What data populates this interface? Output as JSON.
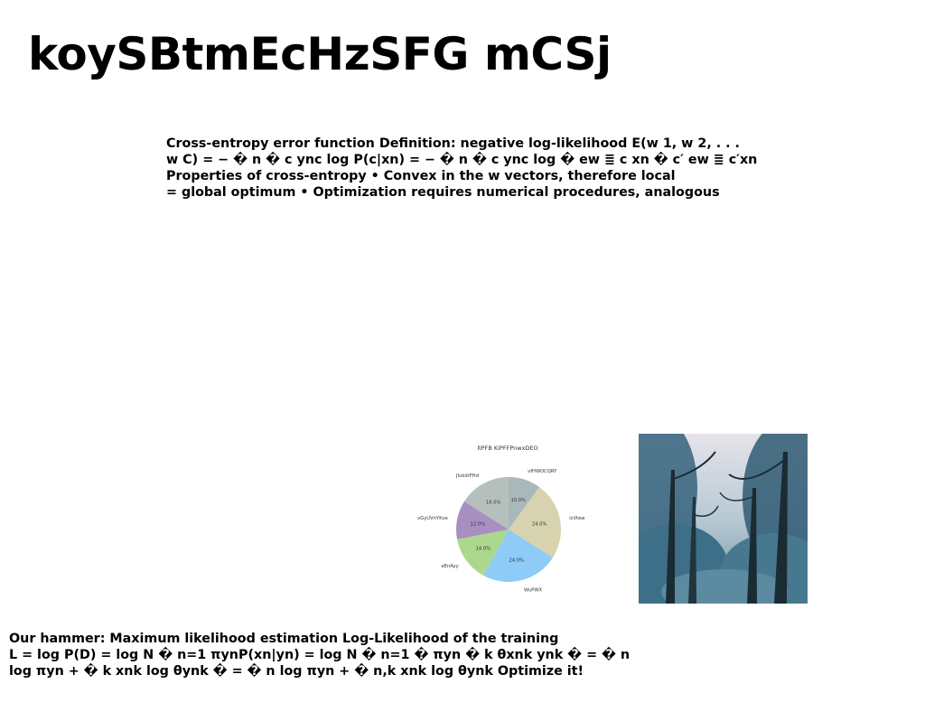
{
  "title": "koySBtmEcHzSFG mCSj",
  "paragraph_top": {
    "lines": [
      "Cross-entropy error function Definition: negative log-likelihood E(w 1, w 2, . . .",
      "w C) = − � n � c ync log P(c|xn) = − � n � c ync log � ew ≣ c xn � c′ ew ≣ c′xn",
      "Properties of cross-entropy • Convex in the w vectors, therefore local",
      "= global optimum • Optimization requires numerical procedures, analogous"
    ]
  },
  "paragraph_bottom": {
    "lines": [
      "Our hammer: Maximum likelihood estimation Log-Likelihood of the training",
      "L = log P(D) = log N � n=1 πynP(xn|yn) = log N � n=1 � πyn � k θxnk ynk � = � n",
      "log πyn + � k xnk log θynk � = � n log πyn + � n,k xnk log θynk Optimize it!"
    ]
  },
  "chart_data": {
    "type": "pie",
    "title": "ltPFB KiPFFPnwxDEO",
    "categories": [
      "vfHWOCQRY",
      "icVtew",
      "WuPWX",
      "eEnAyy",
      "vGyUVnYKve",
      "JIukdrFHd"
    ],
    "values": [
      10.0,
      24.0,
      24.0,
      14.0,
      12.0,
      16.0
    ],
    "labels": [
      "10.0%",
      "24.0%",
      "24.0%",
      "14.0%",
      "12.0%",
      "16.0%"
    ],
    "colors": [
      "#a9b8bb",
      "#d6d3ae",
      "#8ecbf6",
      "#abd88c",
      "#a88fc1",
      "#b5c0bd"
    ]
  },
  "photo": {
    "icon": "forest-photo",
    "colors": {
      "sky": "#d8dde2",
      "foliage": "#2f5b73",
      "trunk": "#1b2b33"
    }
  }
}
